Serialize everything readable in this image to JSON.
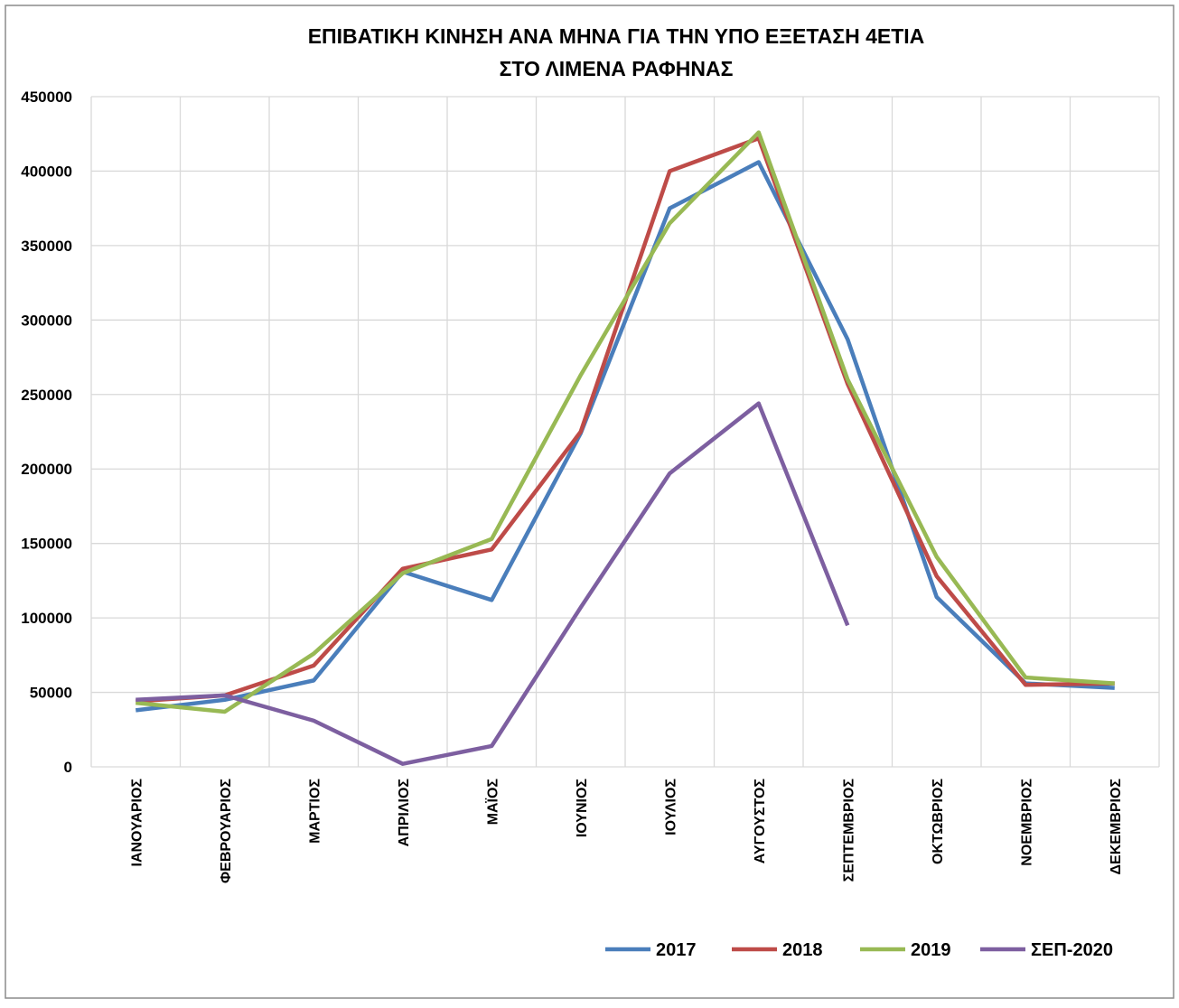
{
  "chart_data": {
    "type": "line",
    "title": [
      "ΕΠΙΒΑΤΙΚΗ ΚΙΝΗΣΗ ΑΝΑ ΜΗΝΑ ΓΙΑ ΤΗΝ ΥΠΟ ΕΞΕΤΑΣΗ 4ΕΤΙΑ",
      "ΣΤΟ ΛΙΜΕΝΑ ΡΑΦΗΝΑΣ"
    ],
    "categories": [
      "ΙΑΝΟΥΑΡΙΟΣ",
      "ΦΕΒΡΟΥΑΡΙΟΣ",
      "ΜΑΡΤΙΟΣ",
      "ΑΠΡΙΛΙΟΣ",
      "ΜΑΪΟΣ",
      "ΙΟΥΝΙΟΣ",
      "ΙΟΥΛΙΟΣ",
      "ΑΥΓΟΥΣΤΟΣ",
      "ΣΕΠΤΕΜΒΡΙΟΣ",
      "ΟΚΤΩΒΡΙΟΣ",
      "ΝΟΕΜΒΡΙΟΣ",
      "ΔΕΚΕΜΒΡΙΟΣ"
    ],
    "series": [
      {
        "name": "2017",
        "color": "#4a7ebb",
        "values": [
          38000,
          45000,
          58000,
          131000,
          112000,
          224000,
          375000,
          406000,
          287000,
          114000,
          56000,
          53000
        ]
      },
      {
        "name": "2018",
        "color": "#be4b48",
        "values": [
          44000,
          48000,
          68000,
          133000,
          146000,
          225000,
          400000,
          422000,
          257000,
          128000,
          55000,
          56000
        ]
      },
      {
        "name": "2019",
        "color": "#98b954",
        "values": [
          43000,
          37000,
          76000,
          130000,
          153000,
          263000,
          365000,
          426000,
          260000,
          141000,
          60000,
          56000
        ]
      },
      {
        "name": "ΣΕΠ-2020",
        "color": "#7d5fa0",
        "values": [
          45000,
          48000,
          31000,
          2000,
          14000,
          107000,
          197000,
          244000,
          95000,
          null,
          null,
          null
        ]
      }
    ],
    "ylim": [
      0,
      450000
    ],
    "yticks": [
      0,
      50000,
      100000,
      150000,
      200000,
      250000,
      300000,
      350000,
      400000,
      450000
    ],
    "grid": true,
    "legend": "bottom-right"
  }
}
